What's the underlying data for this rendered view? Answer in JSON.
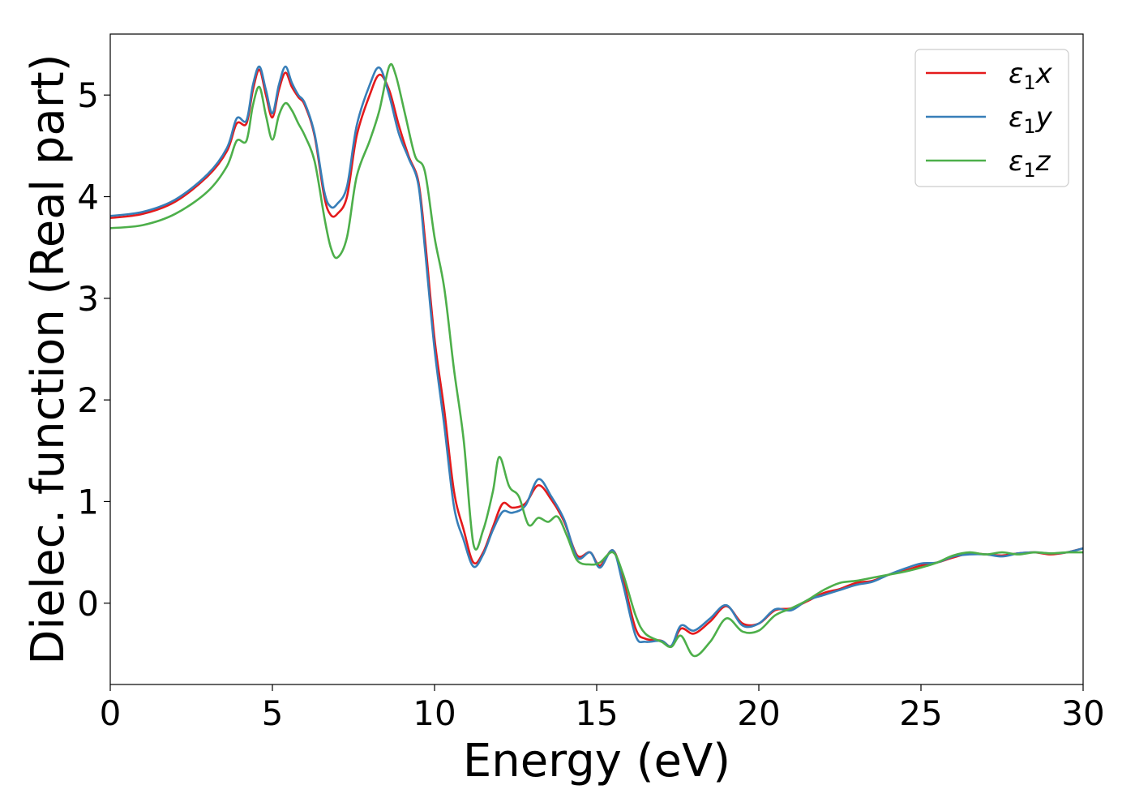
{
  "chart_data": {
    "type": "line",
    "title": "",
    "xlabel": "Energy (eV)",
    "ylabel": "Dielec. function (Real part)",
    "xlim": [
      0,
      30
    ],
    "ylim": [
      -0.8,
      5.6
    ],
    "xticks": [
      0,
      5,
      10,
      15,
      20,
      25,
      30
    ],
    "yticks": [
      0,
      1,
      2,
      3,
      4,
      5
    ],
    "grid": false,
    "legend_position": "top-right",
    "series": [
      {
        "name": "ε1x",
        "label_base": "ε",
        "label_sub": "1",
        "label_axis": "x",
        "color": "#e41a1c",
        "points": [
          [
            0,
            3.79
          ],
          [
            1,
            3.83
          ],
          [
            2,
            3.95
          ],
          [
            3,
            4.2
          ],
          [
            3.6,
            4.45
          ],
          [
            3.9,
            4.72
          ],
          [
            4.2,
            4.72
          ],
          [
            4.4,
            5.05
          ],
          [
            4.6,
            5.25
          ],
          [
            4.8,
            5.0
          ],
          [
            5.0,
            4.78
          ],
          [
            5.2,
            5.05
          ],
          [
            5.4,
            5.22
          ],
          [
            5.6,
            5.08
          ],
          [
            5.8,
            4.98
          ],
          [
            6.0,
            4.9
          ],
          [
            6.3,
            4.6
          ],
          [
            6.6,
            4.0
          ],
          [
            6.8,
            3.82
          ],
          [
            7.0,
            3.83
          ],
          [
            7.3,
            4.0
          ],
          [
            7.6,
            4.6
          ],
          [
            8.0,
            5.0
          ],
          [
            8.3,
            5.2
          ],
          [
            8.6,
            5.05
          ],
          [
            8.9,
            4.7
          ],
          [
            9.2,
            4.4
          ],
          [
            9.5,
            4.15
          ],
          [
            9.7,
            3.6
          ],
          [
            10.0,
            2.6
          ],
          [
            10.3,
            1.9
          ],
          [
            10.6,
            1.1
          ],
          [
            10.9,
            0.72
          ],
          [
            11.2,
            0.4
          ],
          [
            11.5,
            0.5
          ],
          [
            11.8,
            0.75
          ],
          [
            12.1,
            0.98
          ],
          [
            12.4,
            0.94
          ],
          [
            12.8,
            0.98
          ],
          [
            13.2,
            1.16
          ],
          [
            13.6,
            1.02
          ],
          [
            14.0,
            0.8
          ],
          [
            14.4,
            0.47
          ],
          [
            14.8,
            0.5
          ],
          [
            15.1,
            0.37
          ],
          [
            15.5,
            0.52
          ],
          [
            15.8,
            0.25
          ],
          [
            16.2,
            -0.25
          ],
          [
            16.5,
            -0.35
          ],
          [
            17.0,
            -0.37
          ],
          [
            17.3,
            -0.42
          ],
          [
            17.6,
            -0.25
          ],
          [
            18.0,
            -0.3
          ],
          [
            18.5,
            -0.18
          ],
          [
            19.0,
            -0.03
          ],
          [
            19.5,
            -0.2
          ],
          [
            20.0,
            -0.2
          ],
          [
            20.5,
            -0.07
          ],
          [
            21.0,
            -0.05
          ],
          [
            21.5,
            0.02
          ],
          [
            22.0,
            0.1
          ],
          [
            22.5,
            0.14
          ],
          [
            23.0,
            0.2
          ],
          [
            23.5,
            0.22
          ],
          [
            24.0,
            0.28
          ],
          [
            24.5,
            0.32
          ],
          [
            25.0,
            0.37
          ],
          [
            25.5,
            0.4
          ],
          [
            26.0,
            0.45
          ],
          [
            26.5,
            0.49
          ],
          [
            27.0,
            0.48
          ],
          [
            27.5,
            0.47
          ],
          [
            28.0,
            0.49
          ],
          [
            28.5,
            0.5
          ],
          [
            29.0,
            0.48
          ],
          [
            29.5,
            0.5
          ],
          [
            30.0,
            0.54
          ]
        ]
      },
      {
        "name": "ε1y",
        "label_base": "ε",
        "label_sub": "1",
        "label_axis": "y",
        "color": "#377eb8",
        "points": [
          [
            0,
            3.81
          ],
          [
            1,
            3.85
          ],
          [
            2,
            3.97
          ],
          [
            3,
            4.22
          ],
          [
            3.6,
            4.48
          ],
          [
            3.9,
            4.77
          ],
          [
            4.2,
            4.75
          ],
          [
            4.4,
            5.1
          ],
          [
            4.6,
            5.28
          ],
          [
            4.8,
            5.05
          ],
          [
            5.0,
            4.82
          ],
          [
            5.2,
            5.1
          ],
          [
            5.4,
            5.28
          ],
          [
            5.6,
            5.12
          ],
          [
            5.8,
            5.0
          ],
          [
            6.0,
            4.92
          ],
          [
            6.3,
            4.62
          ],
          [
            6.6,
            4.05
          ],
          [
            6.8,
            3.9
          ],
          [
            7.0,
            3.93
          ],
          [
            7.3,
            4.1
          ],
          [
            7.6,
            4.7
          ],
          [
            8.0,
            5.1
          ],
          [
            8.3,
            5.27
          ],
          [
            8.6,
            5.0
          ],
          [
            8.9,
            4.62
          ],
          [
            9.2,
            4.38
          ],
          [
            9.5,
            4.12
          ],
          [
            9.7,
            3.5
          ],
          [
            10.0,
            2.5
          ],
          [
            10.3,
            1.75
          ],
          [
            10.6,
            0.95
          ],
          [
            10.9,
            0.62
          ],
          [
            11.2,
            0.36
          ],
          [
            11.5,
            0.48
          ],
          [
            11.8,
            0.72
          ],
          [
            12.1,
            0.9
          ],
          [
            12.4,
            0.89
          ],
          [
            12.8,
            0.96
          ],
          [
            13.2,
            1.22
          ],
          [
            13.6,
            1.05
          ],
          [
            14.0,
            0.82
          ],
          [
            14.4,
            0.45
          ],
          [
            14.8,
            0.5
          ],
          [
            15.1,
            0.35
          ],
          [
            15.5,
            0.52
          ],
          [
            15.8,
            0.2
          ],
          [
            16.2,
            -0.32
          ],
          [
            16.5,
            -0.38
          ],
          [
            17.0,
            -0.37
          ],
          [
            17.3,
            -0.42
          ],
          [
            17.6,
            -0.22
          ],
          [
            18.0,
            -0.27
          ],
          [
            18.5,
            -0.15
          ],
          [
            19.0,
            -0.02
          ],
          [
            19.5,
            -0.22
          ],
          [
            20.0,
            -0.2
          ],
          [
            20.5,
            -0.06
          ],
          [
            21.0,
            -0.07
          ],
          [
            21.5,
            0.03
          ],
          [
            22.0,
            0.08
          ],
          [
            22.5,
            0.13
          ],
          [
            23.0,
            0.18
          ],
          [
            23.5,
            0.21
          ],
          [
            24.0,
            0.28
          ],
          [
            24.5,
            0.34
          ],
          [
            25.0,
            0.39
          ],
          [
            25.5,
            0.4
          ],
          [
            26.0,
            0.46
          ],
          [
            26.5,
            0.48
          ],
          [
            27.0,
            0.48
          ],
          [
            27.5,
            0.46
          ],
          [
            28.0,
            0.49
          ],
          [
            28.5,
            0.5
          ],
          [
            29.0,
            0.49
          ],
          [
            29.5,
            0.5
          ],
          [
            30.0,
            0.54
          ]
        ]
      },
      {
        "name": "ε1z",
        "label_base": "ε",
        "label_sub": "1",
        "label_axis": "z",
        "color": "#4daf4a",
        "points": [
          [
            0,
            3.69
          ],
          [
            1,
            3.72
          ],
          [
            2,
            3.83
          ],
          [
            3,
            4.05
          ],
          [
            3.6,
            4.3
          ],
          [
            3.9,
            4.55
          ],
          [
            4.2,
            4.55
          ],
          [
            4.4,
            4.9
          ],
          [
            4.6,
            5.08
          ],
          [
            4.8,
            4.8
          ],
          [
            5.0,
            4.56
          ],
          [
            5.2,
            4.8
          ],
          [
            5.4,
            4.92
          ],
          [
            5.6,
            4.85
          ],
          [
            5.8,
            4.72
          ],
          [
            6.0,
            4.6
          ],
          [
            6.3,
            4.35
          ],
          [
            6.6,
            3.8
          ],
          [
            6.8,
            3.5
          ],
          [
            7.0,
            3.4
          ],
          [
            7.3,
            3.6
          ],
          [
            7.6,
            4.2
          ],
          [
            8.0,
            4.55
          ],
          [
            8.3,
            4.85
          ],
          [
            8.6,
            5.28
          ],
          [
            8.8,
            5.2
          ],
          [
            9.1,
            4.8
          ],
          [
            9.4,
            4.4
          ],
          [
            9.7,
            4.25
          ],
          [
            10.0,
            3.6
          ],
          [
            10.3,
            3.1
          ],
          [
            10.6,
            2.3
          ],
          [
            10.9,
            1.6
          ],
          [
            11.2,
            0.58
          ],
          [
            11.5,
            0.72
          ],
          [
            11.8,
            1.1
          ],
          [
            12.0,
            1.44
          ],
          [
            12.3,
            1.15
          ],
          [
            12.6,
            1.05
          ],
          [
            12.9,
            0.77
          ],
          [
            13.2,
            0.84
          ],
          [
            13.5,
            0.8
          ],
          [
            13.8,
            0.85
          ],
          [
            14.1,
            0.65
          ],
          [
            14.4,
            0.42
          ],
          [
            14.8,
            0.38
          ],
          [
            15.1,
            0.4
          ],
          [
            15.5,
            0.5
          ],
          [
            15.8,
            0.3
          ],
          [
            16.2,
            -0.12
          ],
          [
            16.5,
            -0.3
          ],
          [
            17.0,
            -0.38
          ],
          [
            17.3,
            -0.43
          ],
          [
            17.6,
            -0.32
          ],
          [
            18.0,
            -0.52
          ],
          [
            18.5,
            -0.38
          ],
          [
            19.0,
            -0.15
          ],
          [
            19.5,
            -0.28
          ],
          [
            20.0,
            -0.27
          ],
          [
            20.5,
            -0.12
          ],
          [
            21.0,
            -0.05
          ],
          [
            21.5,
            0.03
          ],
          [
            22.0,
            0.13
          ],
          [
            22.5,
            0.2
          ],
          [
            23.0,
            0.22
          ],
          [
            23.5,
            0.25
          ],
          [
            24.0,
            0.28
          ],
          [
            24.5,
            0.31
          ],
          [
            25.0,
            0.35
          ],
          [
            25.5,
            0.4
          ],
          [
            26.0,
            0.47
          ],
          [
            26.5,
            0.5
          ],
          [
            27.0,
            0.48
          ],
          [
            27.5,
            0.5
          ],
          [
            28.0,
            0.48
          ],
          [
            28.5,
            0.5
          ],
          [
            29.0,
            0.49
          ],
          [
            29.5,
            0.5
          ],
          [
            30.0,
            0.5
          ]
        ]
      }
    ]
  }
}
